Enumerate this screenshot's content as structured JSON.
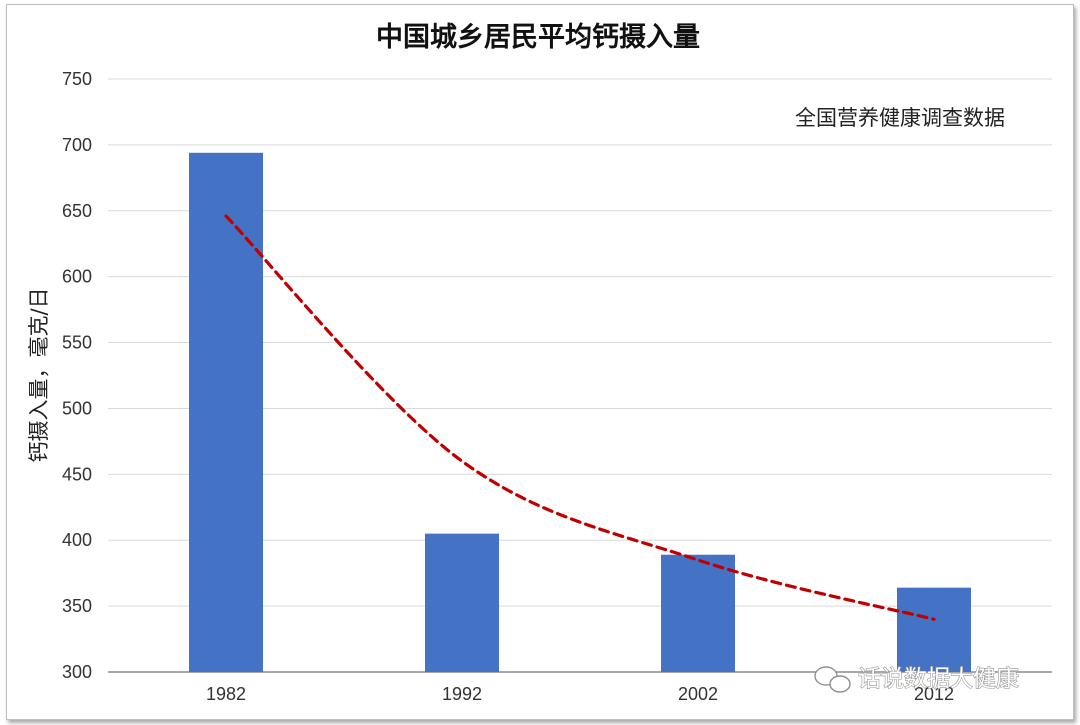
{
  "chart_data": {
    "type": "bar",
    "title": "中国城乡居民平均钙摄入量",
    "ylabel": "钙摄入量，毫克/日",
    "xlabel": "",
    "annotation": "全国营养健康调查数据",
    "categories": [
      "1982",
      "1992",
      "2002",
      "2012"
    ],
    "values": [
      694,
      405,
      389,
      364
    ],
    "ylim": [
      300,
      750
    ],
    "yticks": [
      300,
      350,
      400,
      450,
      500,
      550,
      600,
      650,
      700,
      750
    ],
    "grid": true,
    "bar_color": "#4472c4",
    "trendline": {
      "type": "exponential",
      "style": "dashed",
      "color": "#c00000",
      "values": [
        646,
        460,
        385,
        340
      ]
    }
  },
  "watermark": {
    "text": "话说数据大健康",
    "icon": "wechat-icon"
  }
}
